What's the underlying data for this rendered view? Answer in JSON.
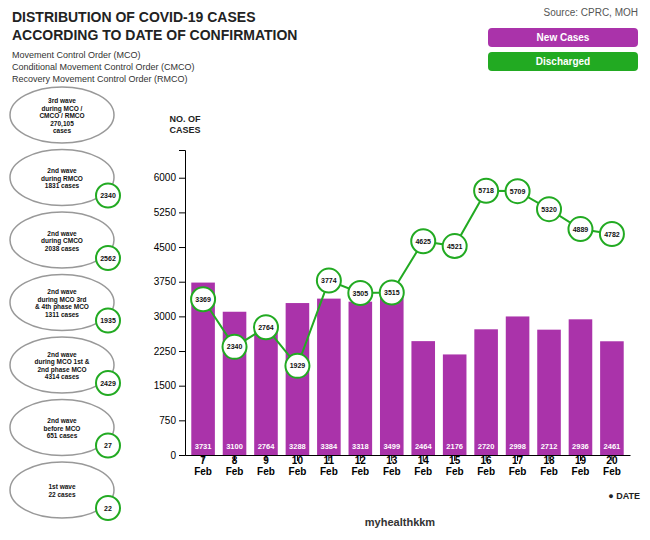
{
  "chart_data": {
    "type": "bar",
    "title": [
      "DISTRIBUTION OF COVID-19 CASES",
      "ACCORDING TO DATE OF CONFIRMATION"
    ],
    "subtitle": [
      "Movement Control Order (MCO)",
      "Conditional Movement Control Order (CMCO)",
      "Recovery Movement Control Order (RMCO)"
    ],
    "source": "Source: CPRC, MOH",
    "footer": "myhealthkkm",
    "y_label": "NO. OF\nCASES",
    "x_label": "● DATE",
    "categories": [
      "7\nFeb",
      "8\nFeb",
      "9\nFeb",
      "10\nFeb",
      "11\nFeb",
      "12\nFeb",
      "13\nFeb",
      "14\nFeb",
      "15\nFeb",
      "16\nFeb",
      "17\nFeb",
      "18\nFeb",
      "19\nFeb",
      "20\nFeb"
    ],
    "series": [
      {
        "name": "New Cases",
        "type": "bar",
        "color": "#aa33aa",
        "values": [
          3731,
          3100,
          2764,
          3288,
          3384,
          3318,
          3499,
          2464,
          2176,
          2720,
          2998,
          2712,
          2936,
          2461
        ]
      },
      {
        "name": "Discharged",
        "type": "line",
        "color": "#22aa22",
        "marker": "circle",
        "values": [
          3369,
          2340,
          2764,
          1929,
          3774,
          3505,
          3515,
          4625,
          4521,
          5718,
          5709,
          5320,
          4889,
          4782
        ]
      }
    ],
    "ylim": [
      0,
      6600
    ],
    "yticks": [
      0,
      750,
      1500,
      2250,
      3000,
      3750,
      4500,
      5250,
      6000
    ],
    "grid": false,
    "legend": "upper right",
    "data_labels": true,
    "annotations": [
      {
        "text": "3rd wave\nduring MCO /\nCMCO / RMCO\n270,105\ncases"
      },
      {
        "text": "2nd wave\nduring RMCO\n1831 cases",
        "value": "2340"
      },
      {
        "text": "2nd wave\nduring CMCO\n2038 cases",
        "value": "2562"
      },
      {
        "text": "2nd wave\nduring MCO 3rd\n& 4th phase MCO\n1311 cases",
        "value": "1935"
      },
      {
        "text": "2nd wave\nduring MCO 1st &\n2nd phase MCO\n4314 cases",
        "value": "2429"
      },
      {
        "text": "2nd wave\nbefore MCO\n651 cases",
        "value": "27"
      },
      {
        "text": "1st wave\n22 cases",
        "value": "22"
      }
    ]
  }
}
